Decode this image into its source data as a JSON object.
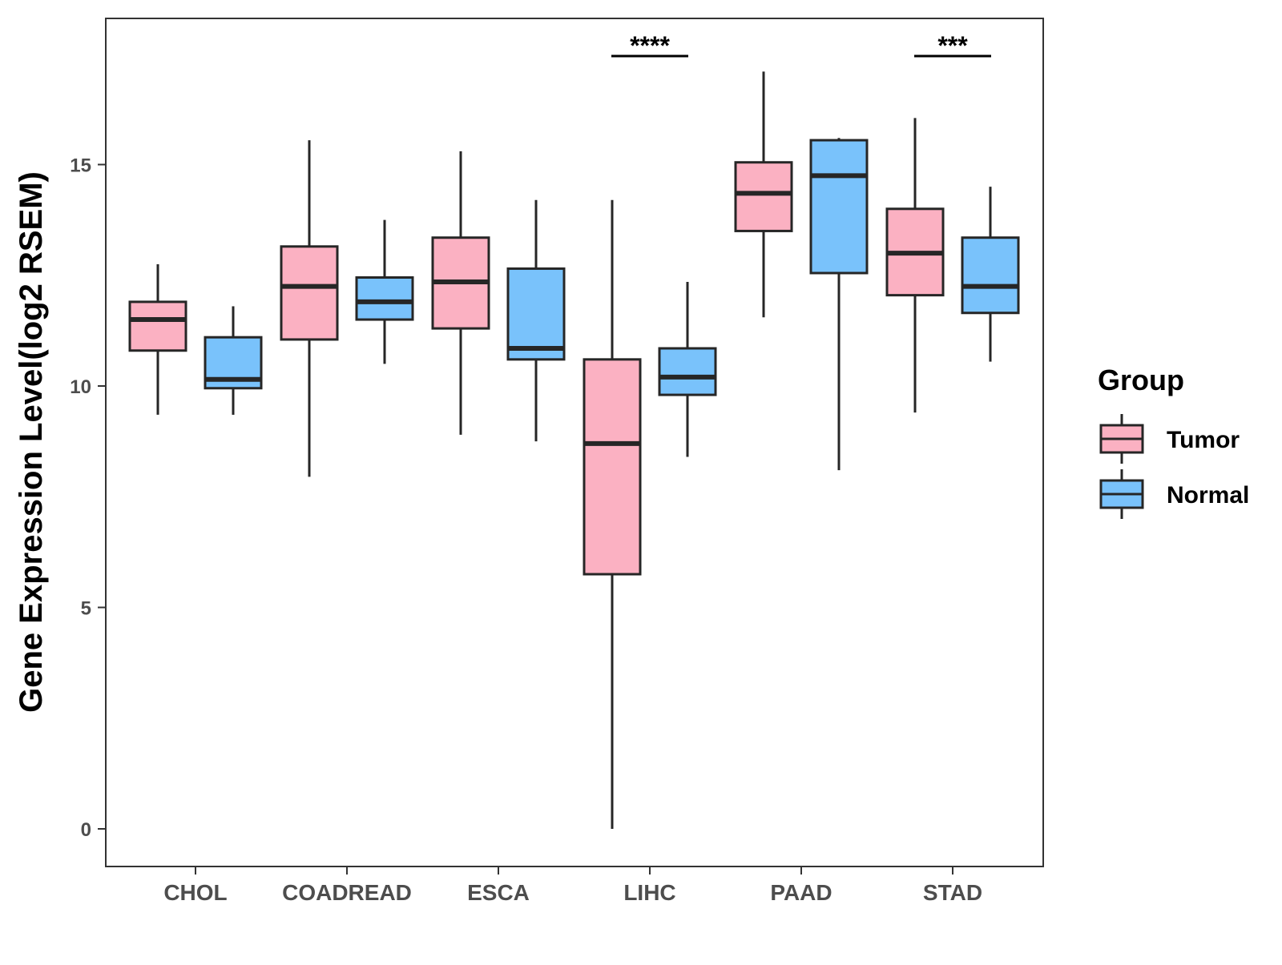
{
  "chart_data": {
    "type": "boxplot",
    "title": "",
    "xlabel": "",
    "ylabel": "Gene Expression Level(log2 RSEM)",
    "ylim": [
      -0.85,
      18.3
    ],
    "yticks": [
      0,
      5,
      10,
      15
    ],
    "categories": [
      "CHOL",
      "COADREAD",
      "ESCA",
      "LIHC",
      "PAAD",
      "STAD"
    ],
    "legend": {
      "title": "Group",
      "placement": "right",
      "entries": [
        "Tumor",
        "Normal"
      ]
    },
    "colors": {
      "Tumor": "#fbb1c2",
      "Normal": "#79c2fb",
      "outline": "#262626"
    },
    "series": [
      {
        "name": "Tumor",
        "boxes": [
          {
            "category": "CHOL",
            "min": 9.35,
            "q1": 10.8,
            "median": 11.5,
            "q3": 11.9,
            "max": 12.75
          },
          {
            "category": "COADREAD",
            "min": 7.95,
            "q1": 11.05,
            "median": 12.25,
            "q3": 13.15,
            "max": 15.55
          },
          {
            "category": "ESCA",
            "min": 8.9,
            "q1": 11.3,
            "median": 12.35,
            "q3": 13.35,
            "max": 15.3
          },
          {
            "category": "LIHC",
            "min": 0.0,
            "q1": 5.75,
            "median": 8.7,
            "q3": 10.6,
            "max": 14.2
          },
          {
            "category": "PAAD",
            "min": 11.55,
            "q1": 13.5,
            "median": 14.35,
            "q3": 15.05,
            "max": 17.1
          },
          {
            "category": "STAD",
            "min": 9.4,
            "q1": 12.05,
            "median": 13.0,
            "q3": 14.0,
            "max": 16.05
          }
        ]
      },
      {
        "name": "Normal",
        "boxes": [
          {
            "category": "CHOL",
            "min": 9.35,
            "q1": 9.95,
            "median": 10.15,
            "q3": 11.1,
            "max": 11.8
          },
          {
            "category": "COADREAD",
            "min": 10.5,
            "q1": 11.5,
            "median": 11.9,
            "q3": 12.45,
            "max": 13.75
          },
          {
            "category": "ESCA",
            "min": 8.75,
            "q1": 10.6,
            "median": 10.85,
            "q3": 12.65,
            "max": 14.2
          },
          {
            "category": "LIHC",
            "min": 8.4,
            "q1": 9.8,
            "median": 10.2,
            "q3": 10.85,
            "max": 12.35
          },
          {
            "category": "PAAD",
            "min": 8.1,
            "q1": 12.55,
            "median": 14.75,
            "q3": 15.55,
            "max": 15.6
          },
          {
            "category": "STAD",
            "min": 10.55,
            "q1": 11.65,
            "median": 12.25,
            "q3": 13.35,
            "max": 14.5
          }
        ]
      }
    ],
    "annotations": [
      {
        "category": "LIHC",
        "label": "****",
        "y": 17.45
      },
      {
        "category": "STAD",
        "label": "***",
        "y": 17.45
      }
    ]
  }
}
